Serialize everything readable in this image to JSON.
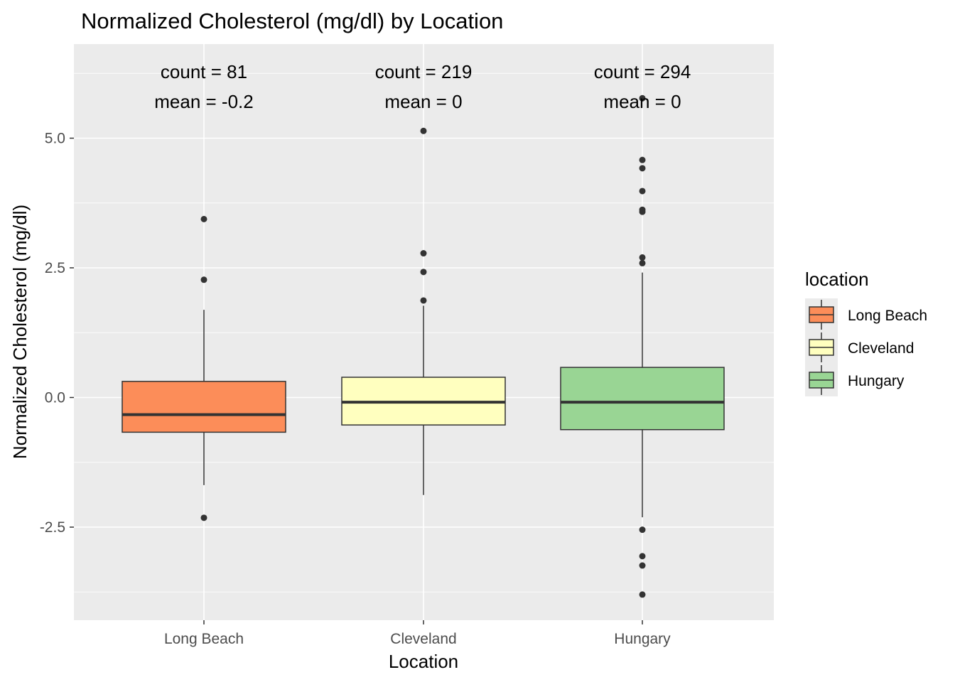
{
  "chart_data": {
    "type": "box",
    "title": "Normalized Cholesterol (mg/dl) by Location",
    "xlabel": "Location",
    "ylabel": "Normalized Cholesterol (mg/dl)",
    "ylim": [
      -4.3,
      6.8
    ],
    "yticks": [
      -2.5,
      0.0,
      2.5,
      5.0
    ],
    "ytick_labels": [
      "-2.5",
      "0.0",
      "2.5",
      "5.0"
    ],
    "grid": true,
    "legend": {
      "title": "location",
      "position": "right",
      "entries": [
        "Long Beach",
        "Cleveland",
        "Hungary"
      ]
    },
    "categories": [
      "Long Beach",
      "Cleveland",
      "Hungary"
    ],
    "colors": [
      "#fc8d59",
      "#ffffbf",
      "#99d594"
    ],
    "boxes": [
      {
        "name": "Long Beach",
        "whisker_low": -1.69,
        "q1": -0.67,
        "median": -0.33,
        "q3": 0.31,
        "whisker_high": 1.69,
        "outliers": [
          3.44,
          2.27,
          -2.32
        ],
        "count_label": "count = 81",
        "mean_label": "mean = -0.2"
      },
      {
        "name": "Cleveland",
        "whisker_low": -1.88,
        "q1": -0.53,
        "median": -0.09,
        "q3": 0.39,
        "whisker_high": 1.77,
        "outliers": [
          5.14,
          2.78,
          2.42,
          1.87
        ],
        "count_label": "count = 219",
        "mean_label": "mean = 0"
      },
      {
        "name": "Hungary",
        "whisker_low": -2.31,
        "q1": -0.62,
        "median": -0.09,
        "q3": 0.58,
        "whisker_high": 2.41,
        "outliers": [
          5.77,
          4.58,
          4.42,
          3.98,
          3.62,
          3.58,
          2.7,
          2.59,
          -2.55,
          -3.06,
          -3.24,
          -3.8
        ],
        "count_label": "count = 294",
        "mean_label": "mean = 0"
      }
    ]
  }
}
